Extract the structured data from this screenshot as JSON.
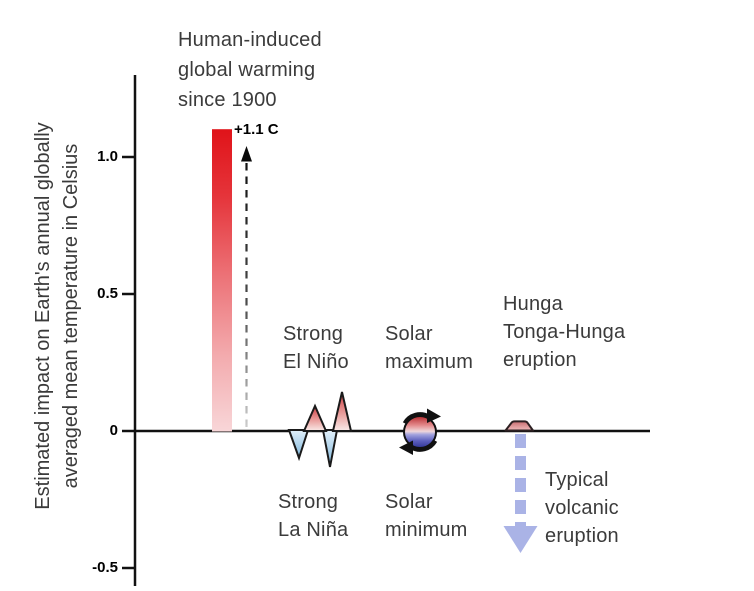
{
  "chart_data": {
    "type": "bar",
    "title": "",
    "ylabel_line1": "Estimated impact on Earth's annual globally",
    "ylabel_line2": "averaged mean temperature in Celsius",
    "ylim": [
      -0.6,
      1.25
    ],
    "grid": false,
    "legend": "none",
    "yticks": [
      {
        "value": 1.0,
        "label": "1.0"
      },
      {
        "value": 0.5,
        "label": "0.5"
      },
      {
        "value": 0.0,
        "label": "0"
      },
      {
        "value": -0.5,
        "label": "-0.5"
      }
    ],
    "series": [
      {
        "name": "Human-induced global warming since 1900",
        "value": 1.1,
        "annotation": "+1.1 C",
        "style": "red gradient bar with dashed up arrow"
      },
      {
        "name": "Strong El Niño",
        "values": [
          0.09,
          0.14
        ],
        "style": "red triangle peaks above axis"
      },
      {
        "name": "Strong La Niña",
        "values": [
          -0.1,
          -0.14
        ],
        "style": "blue triangle dips below axis"
      },
      {
        "name": "Solar maximum",
        "value": 0.06,
        "style": "top half of cycling circle"
      },
      {
        "name": "Solar minimum",
        "value": -0.06,
        "style": "bottom half of cycling circle"
      },
      {
        "name": "Hunga Tonga-Hunga eruption",
        "value": 0.03,
        "style": "small red bump above axis"
      },
      {
        "name": "Typical volcanic eruption",
        "value": -0.45,
        "style": "dashed lavender down arrow"
      }
    ]
  },
  "labels": {
    "bar_title": "Human-induced\nglobal warming\nsince 1900",
    "bar_value": "+1.1 C",
    "el_nino": "Strong\nEl Niño",
    "la_nina": "Strong\nLa Niña",
    "solar_max": "Solar\nmaximum",
    "solar_min": "Solar\nminimum",
    "hunga_tonga": "Hunga\nTonga-Hunga\neruption",
    "volcanic": "Typical\nvolcanic\neruption"
  },
  "colors": {
    "bar_red_top": "#e2161c",
    "bar_red_bottom": "#f8d8da",
    "triangle_red": "#cf4347",
    "triangle_blue": "#7cb6dc",
    "circle_red": "#b5292d",
    "circle_indigo": "#303595",
    "bump_red": "#c96c70",
    "volcanic_arrow": "#aab3e6",
    "axis": "#111111",
    "text": "#3b3b3b"
  }
}
